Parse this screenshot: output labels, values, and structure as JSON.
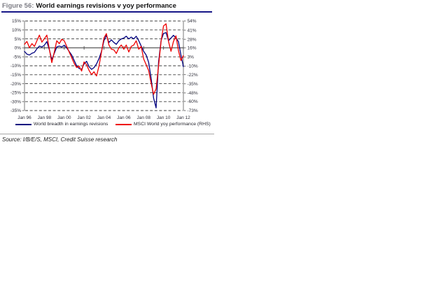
{
  "figure": {
    "label": "Figure 56:",
    "title": "World earnings revisions v yoy performance",
    "source": "Source: I/B/E/S, MSCI, Credit Suisse research"
  },
  "colors": {
    "series_breadth": "#00007f",
    "series_msci": "#ee0000",
    "title_label": "#7e7e86",
    "title_underline": "#161687",
    "grid_line": "#3d3d3d",
    "zero_line": "#5a5a5a",
    "axis_line": "#7a7a7a",
    "tick_text": "#2f2f3a"
  },
  "chart_data": {
    "type": "line",
    "title": "World earnings revisions v yoy performance",
    "grid": "horizontal dashed at every tick, solid line at 0% (left scale)",
    "legend_position": "bottom",
    "x_ticks": [
      {
        "label": "Jan 96",
        "year": 1996
      },
      {
        "label": "Jan 98",
        "year": 1998
      },
      {
        "label": "Jan 00",
        "year": 2000
      },
      {
        "label": "Jan 02",
        "year": 2002
      },
      {
        "label": "Jan 04",
        "year": 2004
      },
      {
        "label": "Jan 06",
        "year": 2006
      },
      {
        "label": "Jan 08",
        "year": 2008
      },
      {
        "label": "Jan 10",
        "year": 2010
      },
      {
        "label": "Jan 12",
        "year": 2012
      }
    ],
    "left_axis": {
      "min": -35,
      "max": 15,
      "ticks": [
        {
          "label": "15%",
          "value": 15
        },
        {
          "label": "10%",
          "value": 10
        },
        {
          "label": "5%",
          "value": 5
        },
        {
          "label": "0%",
          "value": 0
        },
        {
          "label": "-5%",
          "value": -5
        },
        {
          "label": "-10%",
          "value": -10
        },
        {
          "label": "-15%",
          "value": -15
        },
        {
          "label": "-20%",
          "value": -20
        },
        {
          "label": "-25%",
          "value": -25
        },
        {
          "label": "-30%",
          "value": -30
        },
        {
          "label": "-35%",
          "value": -35
        }
      ]
    },
    "right_axis": {
      "min": -73,
      "max": 54,
      "ticks": [
        {
          "label": "54%",
          "value": 54
        },
        {
          "label": "41%",
          "value": 41
        },
        {
          "label": "28%",
          "value": 28
        },
        {
          "label": "16%",
          "value": 16
        },
        {
          "label": "3%",
          "value": 3
        },
        {
          "label": "-10%",
          "value": -10
        },
        {
          "label": "-22%",
          "value": -22
        },
        {
          "label": "-35%",
          "value": -35
        },
        {
          "label": "-48%",
          "value": -48
        },
        {
          "label": "-60%",
          "value": -60
        },
        {
          "label": "-73%",
          "value": -73
        }
      ]
    },
    "x": [
      1996,
      1996.25,
      1996.5,
      1996.75,
      1997,
      1997.25,
      1997.5,
      1997.75,
      1998,
      1998.25,
      1998.5,
      1998.75,
      1999,
      1999.25,
      1999.5,
      1999.75,
      2000,
      2000.25,
      2000.5,
      2000.75,
      2001,
      2001.25,
      2001.5,
      2001.75,
      2002,
      2002.25,
      2002.5,
      2002.75,
      2003,
      2003.25,
      2003.5,
      2003.75,
      2004,
      2004.25,
      2004.5,
      2004.75,
      2005,
      2005.25,
      2005.5,
      2005.75,
      2006,
      2006.25,
      2006.5,
      2006.75,
      2007,
      2007.25,
      2007.5,
      2007.75,
      2008,
      2008.25,
      2008.5,
      2008.75,
      2009,
      2009.25,
      2009.5,
      2009.75,
      2010,
      2010.25,
      2010.5,
      2010.75,
      2011,
      2011.25,
      2011.5,
      2011.75,
      2012
    ],
    "series": [
      {
        "name": "World breadth in earnings revisions",
        "axis": "left",
        "color": "#00007f",
        "values": [
          -2,
          -3.5,
          -4,
          -3,
          -2.5,
          -0.5,
          1,
          0.5,
          1.5,
          3.5,
          -1,
          -6.5,
          -3,
          0.5,
          1,
          0.5,
          1.5,
          0,
          -2,
          -4,
          -7,
          -10,
          -11.5,
          -12,
          -9,
          -7.5,
          -10.5,
          -12,
          -11,
          -9,
          -6,
          -2,
          4,
          7,
          3,
          4.5,
          3,
          2,
          4,
          5,
          5.5,
          6.5,
          5,
          6,
          5,
          6.5,
          4,
          1,
          -2,
          -4,
          -8,
          -17,
          -28,
          -33.5,
          -8,
          4,
          8,
          8.5,
          4,
          5.5,
          7,
          5.5,
          3.5,
          -4,
          -10.5
        ]
      },
      {
        "name": "MSCI World yoy performance (RHS)",
        "axis": "right",
        "color": "#ee0000",
        "values": [
          21,
          25,
          16,
          22,
          18,
          26,
          34,
          24,
          29,
          34,
          14,
          -5,
          10,
          26,
          22,
          28,
          26,
          18,
          10,
          2,
          -6,
          -12,
          -10,
          -17,
          -4,
          -8,
          -16,
          -22,
          -18,
          -24,
          -10,
          10,
          30,
          36,
          20,
          14,
          13,
          8,
          16,
          20,
          14,
          20,
          10,
          18,
          20,
          26,
          14,
          18,
          0,
          -8,
          -16,
          -34,
          -50,
          -42,
          -10,
          25,
          47,
          50,
          25,
          11,
          25,
          33,
          12,
          -2,
          5
        ]
      }
    ]
  }
}
